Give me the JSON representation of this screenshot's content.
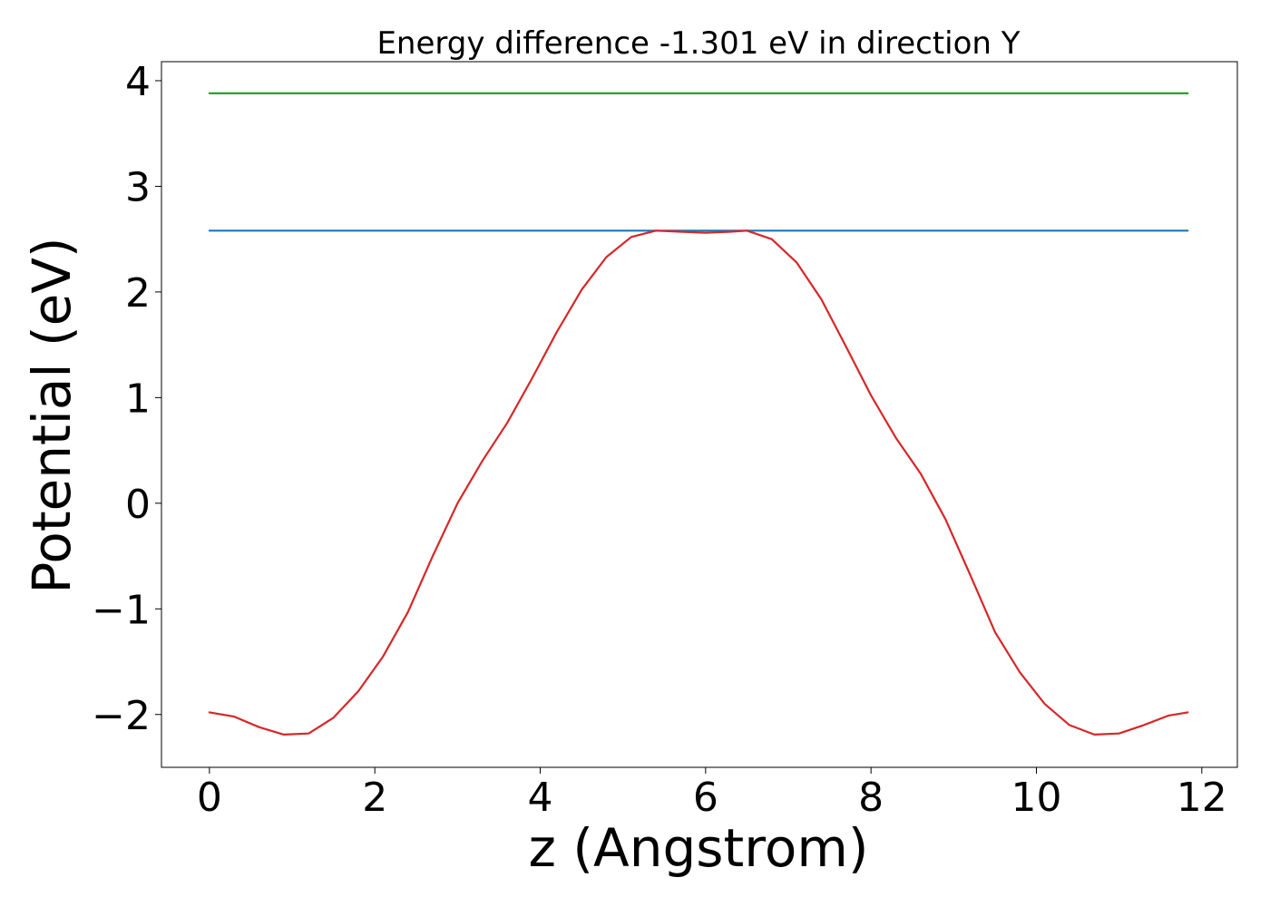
{
  "chart_data": {
    "type": "line",
    "title": "Energy difference -1.301 eV in direction Y",
    "xlabel": "z (Angstrom)",
    "ylabel": "Potential (eV)",
    "xlim": [
      -0.58,
      12.43
    ],
    "ylim": [
      -2.5,
      4.18
    ],
    "xticks": [
      0,
      2,
      4,
      6,
      8,
      10,
      12
    ],
    "xtick_labels": [
      "0",
      "2",
      "4",
      "6",
      "8",
      "10",
      "12"
    ],
    "yticks": [
      -2,
      -1,
      0,
      1,
      2,
      3,
      4
    ],
    "ytick_labels": [
      "−2",
      "−1",
      "0",
      "1",
      "2",
      "3",
      "4"
    ],
    "grid": false,
    "legend": "none",
    "series": [
      {
        "color": "#2ca02c",
        "x": [
          0,
          11.83
        ],
        "y": [
          3.88,
          3.88
        ]
      },
      {
        "color": "#1f77b4",
        "x": [
          0,
          11.83
        ],
        "y": [
          2.58,
          2.58
        ]
      },
      {
        "color": "#d62728",
        "x": [
          0,
          0.3,
          0.6,
          0.9,
          1.2,
          1.5,
          1.8,
          2.1,
          2.4,
          2.7,
          3.0,
          3.3,
          3.6,
          3.9,
          4.2,
          4.5,
          4.8,
          5.1,
          5.4,
          5.7,
          6.0,
          6.3,
          6.5,
          6.8,
          7.1,
          7.4,
          7.7,
          8.0,
          8.3,
          8.6,
          8.9,
          9.2,
          9.5,
          9.8,
          10.1,
          10.4,
          10.7,
          11.0,
          11.3,
          11.6,
          11.83
        ],
        "y": [
          -1.98,
          -2.02,
          -2.12,
          -2.19,
          -2.18,
          -2.03,
          -1.78,
          -1.45,
          -1.03,
          -0.5,
          0.0,
          0.4,
          0.76,
          1.18,
          1.62,
          2.02,
          2.33,
          2.52,
          2.58,
          2.57,
          2.56,
          2.57,
          2.58,
          2.5,
          2.28,
          1.93,
          1.48,
          1.02,
          0.62,
          0.28,
          -0.15,
          -0.68,
          -1.22,
          -1.6,
          -1.9,
          -2.1,
          -2.19,
          -2.18,
          -2.1,
          -2.01,
          -1.98
        ]
      }
    ]
  }
}
